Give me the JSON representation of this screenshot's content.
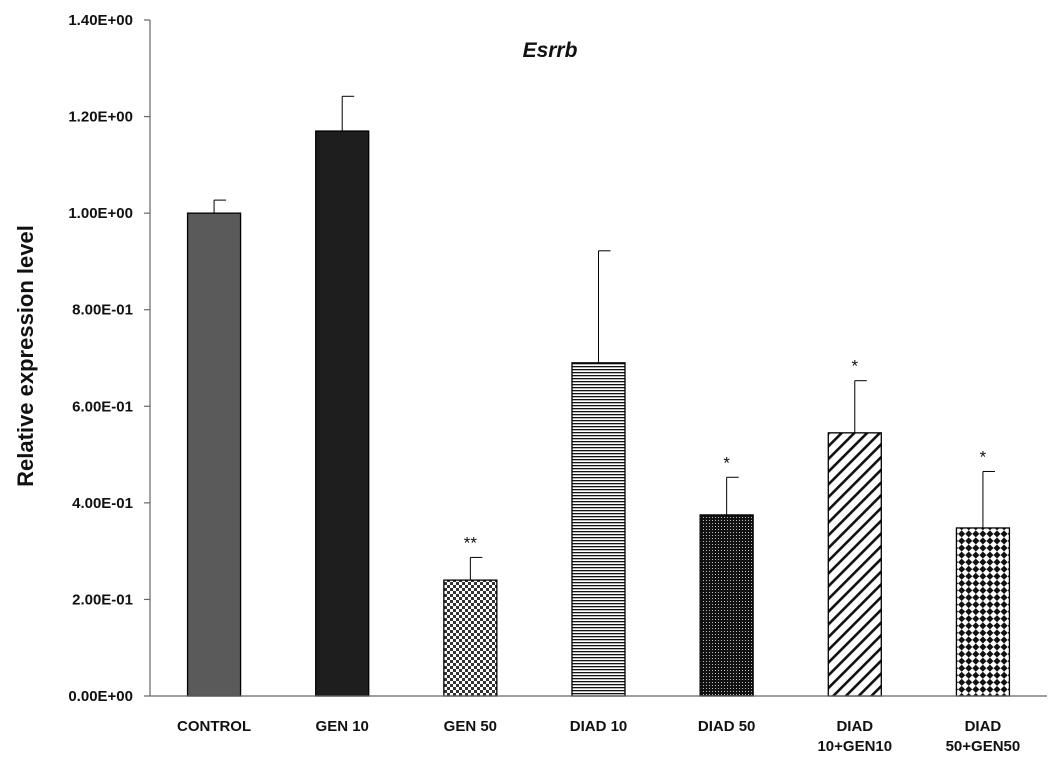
{
  "chart_data": {
    "type": "bar",
    "title": "Esrrb",
    "xlabel": "",
    "ylabel": "Relative expression level",
    "ylim": [
      0,
      1.4
    ],
    "yticks": [
      0,
      0.2,
      0.4,
      0.6,
      0.8,
      1.0,
      1.2,
      1.4
    ],
    "ytick_labels": [
      "0.00E+00",
      "2.00E-01",
      "4.00E-01",
      "6.00E-01",
      "8.00E-01",
      "1.00E+00",
      "1.20E+00",
      "1.40E+00"
    ],
    "grid": false,
    "legend": "none",
    "bars": [
      {
        "label_lines": [
          "CONTROL"
        ],
        "value": 1.0,
        "error": 0.027,
        "significance": "",
        "fill": "solid-gray",
        "color": "#5a5a5a"
      },
      {
        "label_lines": [
          "GEN 10"
        ],
        "value": 1.17,
        "error": 0.072,
        "significance": "",
        "fill": "solid-black",
        "color": "#1e1e1e"
      },
      {
        "label_lines": [
          "GEN 50"
        ],
        "value": 0.24,
        "error": 0.047,
        "significance": "**",
        "fill": "checker",
        "color": "#000000"
      },
      {
        "label_lines": [
          "DIAD 10"
        ],
        "value": 0.69,
        "error": 0.232,
        "significance": "",
        "fill": "horizontal-lines",
        "color": "#000000"
      },
      {
        "label_lines": [
          "DIAD 50"
        ],
        "value": 0.375,
        "error": 0.078,
        "significance": "*",
        "fill": "fine-dots",
        "color": "#000000"
      },
      {
        "label_lines": [
          "DIAD",
          "10+GEN10"
        ],
        "value": 0.545,
        "error": 0.108,
        "significance": "*",
        "fill": "diagonal-lines",
        "color": "#000000"
      },
      {
        "label_lines": [
          "DIAD",
          "50+GEN50"
        ],
        "value": 0.348,
        "error": 0.117,
        "significance": "*",
        "fill": "diamond-checker",
        "color": "#000000"
      }
    ]
  }
}
